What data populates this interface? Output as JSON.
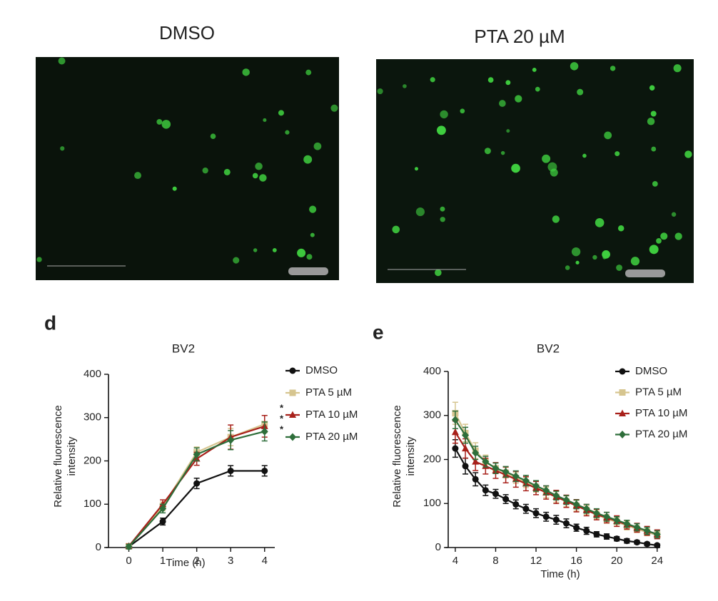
{
  "images": [
    {
      "title": "DMSO"
    },
    {
      "title": "PTA 20 µM"
    }
  ],
  "chart_data": [
    {
      "type": "line",
      "panel_label": "d",
      "title": "BV2",
      "xlabel": "Time (h)",
      "ylabel": [
        "Relative fluorescence",
        "intensity"
      ],
      "x": [
        0,
        1,
        2,
        3,
        4
      ],
      "xlim": [
        -0.6,
        4.3
      ],
      "xticks": [
        0,
        1,
        2,
        3,
        4
      ],
      "ylim": [
        0,
        400
      ],
      "yticks": [
        0,
        100,
        200,
        300,
        400
      ],
      "series": [
        {
          "name": "DMSO",
          "color": "#111111",
          "marker": "circle",
          "values": [
            2,
            60,
            148,
            177,
            177
          ],
          "errors": [
            3,
            8,
            12,
            12,
            12
          ]
        },
        {
          "name": "PTA 5 µM",
          "color": "#d6c58f",
          "marker": "square",
          "values": [
            3,
            95,
            220,
            255,
            285
          ],
          "errors": [
            5,
            10,
            12,
            20,
            20
          ]
        },
        {
          "name": "PTA 10 µM",
          "color": "#a8201a",
          "marker": "triangle",
          "values": [
            3,
            100,
            205,
            255,
            280
          ],
          "errors": [
            5,
            10,
            15,
            28,
            25
          ]
        },
        {
          "name": "PTA 20 µM",
          "color": "#2e6e3a",
          "marker": "diamond",
          "values": [
            2,
            90,
            215,
            248,
            268
          ],
          "errors": [
            5,
            10,
            15,
            22,
            22
          ]
        }
      ],
      "annotations": [
        {
          "text": "*",
          "color": "#d6c58f"
        },
        {
          "text": "*",
          "color": "#a8201a"
        },
        {
          "text": "*",
          "color": "#2e6e3a"
        }
      ]
    },
    {
      "type": "line",
      "panel_label": "e",
      "title": "BV2",
      "xlabel": "Time (h)",
      "ylabel": [
        "Relative fluorescence",
        "intensity"
      ],
      "x": [
        4,
        5,
        6,
        7,
        8,
        9,
        10,
        11,
        12,
        13,
        14,
        15,
        16,
        17,
        18,
        19,
        20,
        21,
        22,
        23,
        24
      ],
      "xlim": [
        3.3,
        24.3
      ],
      "xticks": [
        4,
        8,
        12,
        16,
        20,
        24
      ],
      "ylim": [
        0,
        400
      ],
      "yticks": [
        0,
        100,
        200,
        300,
        400
      ],
      "series": [
        {
          "name": "DMSO",
          "color": "#111111",
          "marker": "circle",
          "values": [
            225,
            185,
            155,
            130,
            122,
            110,
            98,
            88,
            78,
            70,
            63,
            55,
            45,
            38,
            30,
            25,
            20,
            15,
            12,
            8,
            5
          ],
          "errors": [
            20,
            18,
            15,
            12,
            10,
            10,
            10,
            10,
            10,
            10,
            10,
            10,
            8,
            8,
            6,
            6,
            5,
            5,
            4,
            4,
            3
          ]
        },
        {
          "name": "PTA 5 µM",
          "color": "#d6c58f",
          "marker": "square",
          "values": [
            305,
            260,
            220,
            195,
            180,
            170,
            158,
            148,
            138,
            125,
            115,
            105,
            95,
            85,
            75,
            65,
            58,
            50,
            42,
            35,
            28
          ],
          "errors": [
            25,
            20,
            18,
            15,
            12,
            12,
            12,
            12,
            12,
            12,
            12,
            12,
            12,
            10,
            10,
            10,
            10,
            10,
            8,
            8,
            8
          ]
        },
        {
          "name": "PTA 10 µM",
          "color": "#a8201a",
          "marker": "triangle",
          "values": [
            262,
            225,
            195,
            185,
            175,
            165,
            155,
            145,
            135,
            125,
            115,
            105,
            95,
            85,
            75,
            68,
            60,
            52,
            45,
            38,
            30
          ],
          "errors": [
            25,
            22,
            20,
            18,
            18,
            18,
            18,
            16,
            15,
            15,
            15,
            14,
            14,
            13,
            12,
            12,
            12,
            10,
            10,
            10,
            10
          ]
        },
        {
          "name": "PTA 20 µM",
          "color": "#2e6e3a",
          "marker": "diamond",
          "values": [
            290,
            255,
            215,
            195,
            180,
            172,
            162,
            152,
            140,
            130,
            118,
            108,
            98,
            88,
            78,
            70,
            62,
            54,
            46,
            38,
            30
          ],
          "errors": [
            20,
            18,
            15,
            12,
            12,
            12,
            12,
            12,
            12,
            10,
            10,
            10,
            10,
            10,
            10,
            10,
            8,
            8,
            8,
            8,
            8
          ]
        }
      ]
    }
  ]
}
